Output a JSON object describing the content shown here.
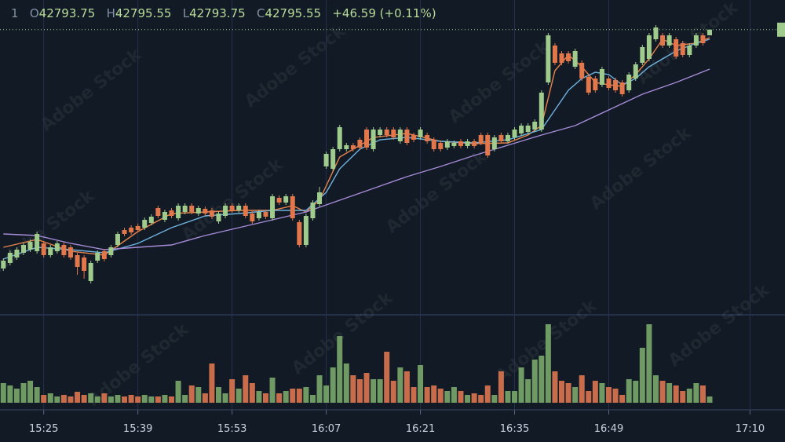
{
  "header": {
    "interval": "1",
    "open_label": "O",
    "high_label": "H",
    "low_label": "L",
    "close_label": "C",
    "change": "+46.59",
    "change_pct": "(+0.11%)"
  },
  "watermark": "Adobe Stock",
  "watermark_id": "#488800651",
  "chart_data": {
    "type": "candlestick",
    "up_color": "#9fcb8c",
    "down_color": "#e2774c",
    "volume_up_color": "#6f9a63",
    "volume_down_color": "#c86c4b",
    "xlim": [
      -0.5,
      116.2
    ],
    "ylim": [
      42705,
      42805
    ],
    "vlim": [
      0,
      100
    ],
    "xticks": [
      {
        "value": 6,
        "label": "15:25"
      },
      {
        "value": 20,
        "label": "15:39"
      },
      {
        "value": 34,
        "label": "15:53"
      },
      {
        "value": 48,
        "label": "16:07"
      },
      {
        "value": 62,
        "label": "16:21"
      },
      {
        "value": 76,
        "label": "16:35"
      },
      {
        "value": 90,
        "label": "16:49"
      },
      {
        "value": 111,
        "label": "17:10"
      }
    ],
    "grid": true,
    "candles": [
      [
        42719.5,
        42722.75,
        42718.75,
        42722
      ],
      [
        42721.25,
        42725.25,
        42720.5,
        42724.5
      ],
      [
        42723,
        42726.25,
        42722.25,
        42725.5
      ],
      [
        42724.5,
        42727.75,
        42723.75,
        42727
      ],
      [
        42725.5,
        42728.75,
        42724.75,
        42728
      ],
      [
        42725,
        42731.25,
        42724.25,
        42730.5
      ],
      [
        42727.5,
        42728.25,
        42723,
        42723.75
      ],
      [
        42723.75,
        42727,
        42723,
        42726.25
      ],
      [
        42725,
        42728.25,
        42724.25,
        42727.5
      ],
      [
        42727,
        42727.75,
        42723,
        42723.75
      ],
      [
        42726.25,
        42727,
        42722.25,
        42723
      ],
      [
        42723.75,
        42724.5,
        42717.5,
        42720
      ],
      [
        42723,
        42723.75,
        42716.25,
        42718.75
      ],
      [
        42715.5,
        42722,
        42714.75,
        42721.25
      ],
      [
        42722,
        42725.25,
        42721.25,
        42724.5
      ],
      [
        42725,
        42725.75,
        42721.75,
        42722.5
      ],
      [
        42723.75,
        42727,
        42723,
        42726.25
      ],
      [
        42727,
        42731.25,
        42726.25,
        42730.5
      ],
      [
        42731.75,
        42732.5,
        42729.75,
        42730.5
      ],
      [
        42732.5,
        42733.25,
        42730.25,
        42731
      ],
      [
        42733,
        42733.75,
        42731,
        42731.75
      ],
      [
        42732.5,
        42735.75,
        42731.75,
        42735
      ],
      [
        42734,
        42736.75,
        42733.25,
        42736
      ],
      [
        42738.75,
        42739.5,
        42735.5,
        42736.25
      ],
      [
        42735,
        42738.25,
        42734.25,
        42737.5
      ],
      [
        42738,
        42738.75,
        42735.5,
        42736.25
      ],
      [
        42735.5,
        42740.25,
        42734.75,
        42739.5
      ],
      [
        42737.5,
        42740.25,
        42736.75,
        42739.5
      ],
      [
        42739.5,
        42740.25,
        42736.75,
        42737.5
      ],
      [
        42737,
        42739.5,
        42736.25,
        42738.75
      ],
      [
        42738.5,
        42739.25,
        42736.25,
        42737
      ],
      [
        42738,
        42738.75,
        42735.25,
        42736
      ],
      [
        42734.5,
        42737.75,
        42733.75,
        42737
      ],
      [
        42736.25,
        42740.25,
        42735.5,
        42739.5
      ],
      [
        42739.5,
        42740.25,
        42737.25,
        42738
      ],
      [
        42738,
        42740.25,
        42737.25,
        42739.5
      ],
      [
        42739.5,
        42740.25,
        42735.5,
        42736.25
      ],
      [
        42737,
        42737.75,
        42733.75,
        42734.5
      ],
      [
        42735.5,
        42738.25,
        42734.75,
        42737.5
      ],
      [
        42737.5,
        42738.25,
        42735.25,
        42736
      ],
      [
        42735.5,
        42743.25,
        42734.75,
        42742.5
      ],
      [
        42742,
        42742.75,
        42739.75,
        42740.5
      ],
      [
        42740.5,
        42743.25,
        42739.75,
        42742.5
      ],
      [
        42742.5,
        42743.25,
        42734.75,
        42735.5
      ],
      [
        42734.25,
        42735,
        42726.25,
        42727
      ],
      [
        42727,
        42737,
        42726.25,
        42736.25
      ],
      [
        42735.5,
        42741.25,
        42734.75,
        42740.5
      ],
      [
        42740,
        42745.5,
        42739.25,
        42743.75
      ],
      [
        42752,
        42756.75,
        42751.25,
        42756
      ],
      [
        42751.25,
        42758.25,
        42750.5,
        42757.5
      ],
      [
        42757.5,
        42765.25,
        42756.75,
        42764.5
      ],
      [
        42757.5,
        42759.5,
        42756.75,
        42758.75
      ],
      [
        42758.75,
        42759.5,
        42756.75,
        42757.5
      ],
      [
        42760.5,
        42761.25,
        42757.25,
        42758
      ],
      [
        42763.75,
        42764.5,
        42757.25,
        42758
      ],
      [
        42757.5,
        42764.5,
        42756.75,
        42763.75
      ],
      [
        42762,
        42764.5,
        42761.25,
        42763.75
      ],
      [
        42763.75,
        42764.5,
        42761.25,
        42762
      ],
      [
        42763.75,
        42764.5,
        42760.5,
        42761.25
      ],
      [
        42760,
        42764.5,
        42759.25,
        42763.75
      ],
      [
        42763.75,
        42764.5,
        42758.75,
        42759.5
      ],
      [
        42762,
        42762.75,
        42759.75,
        42760.5
      ],
      [
        42761.25,
        42764.5,
        42760.5,
        42763.75
      ],
      [
        42762,
        42762.75,
        42759.25,
        42760
      ],
      [
        42760.5,
        42761.25,
        42756.75,
        42757.5
      ],
      [
        42759.5,
        42760.25,
        42756.75,
        42757.5
      ],
      [
        42758,
        42760.75,
        42757.25,
        42760
      ],
      [
        42758.5,
        42760.25,
        42757.75,
        42759.5
      ],
      [
        42760,
        42760.75,
        42757.75,
        42758.5
      ],
      [
        42758.5,
        42760.75,
        42757.75,
        42760
      ],
      [
        42760,
        42760.75,
        42757.75,
        42758.5
      ],
      [
        42762,
        42762.75,
        42758.75,
        42759.5
      ],
      [
        42762,
        42762.75,
        42754.75,
        42755.5
      ],
      [
        42757.5,
        42762,
        42756.75,
        42761.25
      ],
      [
        42762,
        42762.75,
        42759.25,
        42760
      ],
      [
        42760,
        42762.75,
        42759.25,
        42762
      ],
      [
        42761.25,
        42764.5,
        42760.5,
        42763.75
      ],
      [
        42762.5,
        42765.75,
        42761.75,
        42765
      ],
      [
        42763,
        42765.75,
        42762.25,
        42765
      ],
      [
        42763.75,
        42767,
        42763,
        42766.25
      ],
      [
        42763.75,
        42776.25,
        42763,
        42775.5
      ],
      [
        42778.75,
        42794.5,
        42778,
        42793.75
      ],
      [
        42790.5,
        42791.25,
        42784.25,
        42785
      ],
      [
        42788,
        42788.75,
        42784.25,
        42785
      ],
      [
        42788,
        42788.75,
        42784.75,
        42785.5
      ],
      [
        42783.75,
        42789.5,
        42783,
        42788.75
      ],
      [
        42785,
        42785.75,
        42779.25,
        42780
      ],
      [
        42780.5,
        42781.25,
        42774.75,
        42775.5
      ],
      [
        42780,
        42780.75,
        42775.5,
        42776.25
      ],
      [
        42778,
        42783.75,
        42777.25,
        42783
      ],
      [
        42780,
        42780.75,
        42776.25,
        42777
      ],
      [
        42779.5,
        42780.25,
        42775.5,
        42776.25
      ],
      [
        42778.75,
        42779.5,
        42774.25,
        42775
      ],
      [
        42776.25,
        42782,
        42775.5,
        42781.25
      ],
      [
        42780,
        42785.25,
        42779.25,
        42784.5
      ],
      [
        42785,
        42790.75,
        42784.25,
        42790
      ],
      [
        42786.25,
        42794.5,
        42785.5,
        42793.75
      ],
      [
        42792.5,
        42797,
        42791.75,
        42796.25
      ],
      [
        42793.75,
        42794.5,
        42789.75,
        42790.5
      ],
      [
        42790.5,
        42794.5,
        42789.75,
        42793.75
      ],
      [
        42792.5,
        42793.25,
        42786.25,
        42787
      ],
      [
        42791.25,
        42792,
        42786.75,
        42787.5
      ],
      [
        42787.5,
        42791.25,
        42786.75,
        42790.5
      ],
      [
        42790.5,
        42794.5,
        42789.75,
        42793.75
      ],
      [
        42793.75,
        42794.5,
        42790.5,
        42791.25
      ],
      [
        42793.75,
        42795.55,
        42793.75,
        42795.55
      ]
    ],
    "volume": [
      25,
      22,
      18,
      25,
      28,
      20,
      10,
      12,
      8,
      10,
      8,
      14,
      10,
      12,
      8,
      12,
      8,
      10,
      8,
      10,
      8,
      10,
      8,
      8,
      10,
      8,
      28,
      10,
      22,
      20,
      12,
      50,
      20,
      12,
      30,
      18,
      35,
      25,
      15,
      12,
      32,
      12,
      15,
      18,
      18,
      20,
      10,
      35,
      22,
      45,
      85,
      50,
      35,
      30,
      38,
      30,
      30,
      65,
      28,
      45,
      40,
      20,
      48,
      20,
      22,
      18,
      15,
      20,
      15,
      10,
      12,
      10,
      22,
      10,
      40,
      15,
      15,
      45,
      30,
      55,
      60,
      100,
      40,
      28,
      25,
      20,
      35,
      15,
      28,
      25,
      20,
      18,
      10,
      30,
      28,
      70,
      100,
      35,
      28,
      25,
      22,
      15,
      18,
      25,
      22,
      8
    ],
    "ma": [
      {
        "color": "#e8834c",
        "x": [
          0,
          5,
          10,
          15,
          20,
          25,
          30,
          35,
          40,
          43,
          45,
          47,
          50,
          55,
          60,
          65,
          70,
          75,
          78,
          80,
          82,
          84,
          86,
          88,
          90,
          92,
          94,
          96,
          98,
          100,
          103,
          105
        ],
        "values": [
          42726.25,
          42728.75,
          42725,
          42723.75,
          42731.25,
          42737,
          42737.5,
          42738,
          42738,
          42739.5,
          42737.5,
          42741.25,
          42755,
          42761.25,
          42762.5,
          42760,
          42759.25,
          42759.5,
          42762,
          42765,
          42782.5,
          42787.5,
          42783.75,
          42778.75,
          42778,
          42777.5,
          42781.25,
          42786.25,
          42792.5,
          42790.5,
          42791.25,
          42793
        ]
      },
      {
        "color": "#6fb2df",
        "x": [
          0,
          5,
          10,
          15,
          20,
          25,
          30,
          35,
          40,
          45,
          48,
          50,
          53,
          56,
          60,
          65,
          70,
          75,
          80,
          82,
          84,
          86,
          88,
          90,
          92,
          94,
          96,
          100,
          103,
          105
        ],
        "values": [
          42722.5,
          42726.25,
          42725.5,
          42724.5,
          42727.5,
          42732.5,
          42736.25,
          42737,
          42738,
          42738,
          42743.75,
          42751.25,
          42757.5,
          42760.5,
          42761.25,
          42760,
          42759.5,
          42760.5,
          42763.75,
          42770,
          42776.25,
          42780,
          42782,
          42781.25,
          42778,
          42780,
          42783.75,
          42788.75,
          42791.25,
          42792.5
        ]
      },
      {
        "color": "#a68bd6",
        "x": [
          0,
          5,
          10,
          15,
          20,
          25,
          30,
          35,
          40,
          45,
          50,
          55,
          60,
          65,
          70,
          75,
          80,
          85,
          90,
          95,
          100,
          105
        ],
        "values": [
          42730.5,
          42730,
          42727.5,
          42725.5,
          42726.25,
          42727,
          42730,
          42732.5,
          42735,
          42737.5,
          42741.25,
          42745,
          42748.75,
          42752,
          42755.5,
          42758.75,
          42762,
          42765,
          42770,
          42775,
          42778.75,
          42783
        ]
      }
    ]
  }
}
